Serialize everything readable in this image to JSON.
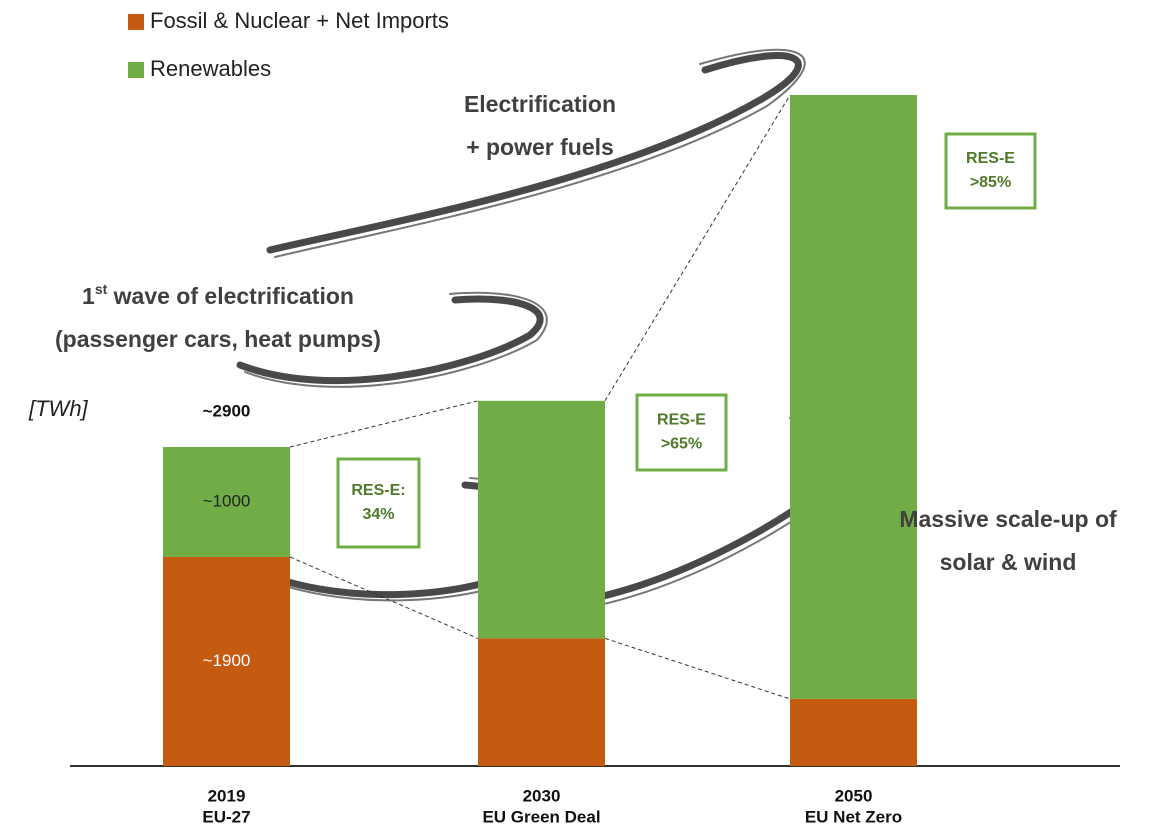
{
  "chart_data": {
    "type": "stacked-bar",
    "unit_label": "[TWh]",
    "categories": [
      "2019",
      "2030",
      "2050"
    ],
    "category_sublabels": [
      "EU-27",
      "EU Green Deal",
      "EU Net Zero"
    ],
    "series": [
      {
        "name": "Fossil & Nuclear + Net Imports",
        "color": "#c55a11",
        "values": [
          1900,
          1160,
          610
        ],
        "value_labels": [
          "~1900",
          null,
          null
        ]
      },
      {
        "name": "Renewables",
        "color": "#70ad47",
        "values": [
          1000,
          2160,
          5490
        ],
        "value_labels": [
          "~1000",
          null,
          null
        ]
      }
    ],
    "total_label": {
      "value": 2900,
      "label": "~2900"
    },
    "ylim": [
      0,
      6500
    ],
    "share_boxes": [
      [
        "RES-E:",
        "34%"
      ],
      [
        "RES-E",
        ">65%"
      ],
      [
        "RES-E",
        ">85%"
      ]
    ],
    "annotations": [
      {
        "lines": [
          "Electrification",
          "+ power fuels"
        ]
      },
      {
        "lines": [
          [
            "1",
            "st",
            " wave of electrification"
          ],
          "(passenger cars, heat pumps)"
        ]
      },
      {
        "lines": [
          "Massive scale-up of",
          "solar & wind"
        ]
      }
    ]
  }
}
